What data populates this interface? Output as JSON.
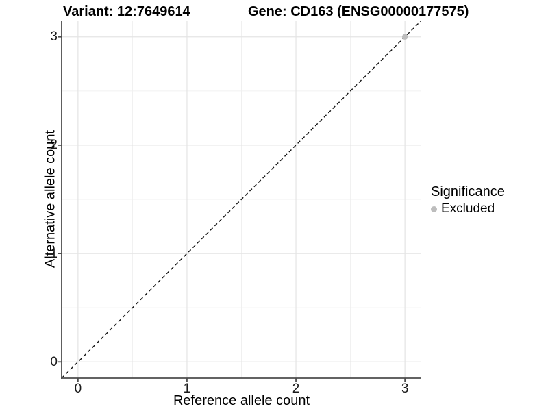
{
  "figure": {
    "title_left": "Variant: 12:7649614",
    "title_right": "Gene: CD163 (ENSG00000177575)"
  },
  "chart_data": {
    "type": "scatter",
    "title": "Variant: 12:7649614    Gene: CD163 (ENSG00000177575)",
    "xlabel": "Reference allele count",
    "ylabel": "Alternative allele count",
    "xlim": [
      -0.15,
      3.15
    ],
    "ylim": [
      -0.15,
      3.15
    ],
    "xticks": [
      0,
      1,
      2,
      3
    ],
    "yticks": [
      0,
      1,
      2,
      3
    ],
    "minor_gridlines": [
      0.5,
      1.5,
      2.5
    ],
    "grid": "on",
    "reference_line": {
      "type": "identity",
      "slope": 1,
      "intercept": 0,
      "style": "dashed",
      "color": "#111111"
    },
    "series": [
      {
        "name": "Excluded",
        "color": "#bdbdbd",
        "points": [
          {
            "x": 3,
            "y": 3
          }
        ]
      }
    ],
    "legend": {
      "title": "Significance",
      "position": "right",
      "items": [
        {
          "label": "Excluded",
          "color": "#bdbdbd"
        }
      ]
    }
  },
  "style_colors": {
    "axis_line": "#4d4d4d",
    "major_grid": "#e4e4e4",
    "minor_grid": "#f0f0f0",
    "background": "#ffffff",
    "text": "#000000"
  }
}
